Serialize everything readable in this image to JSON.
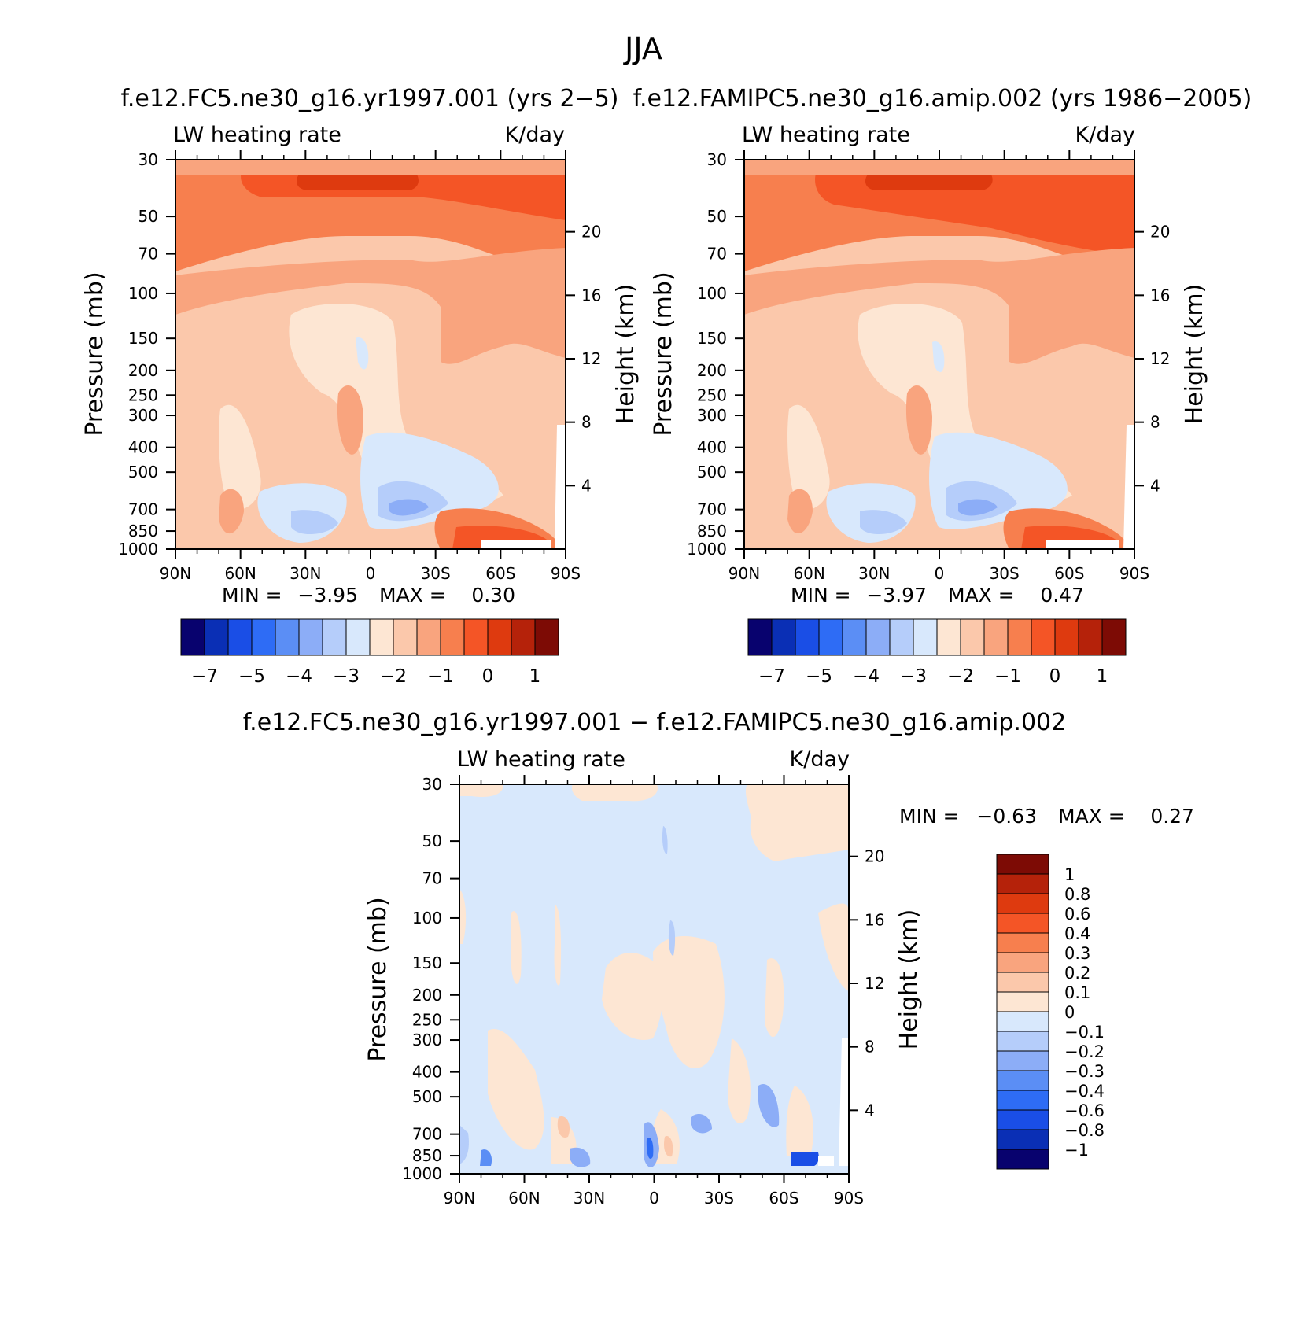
{
  "page_title": "JJA",
  "chart_data": [
    {
      "type": "heatmap",
      "title": "f.e12.FC5.ne30_g16.yr1997.001 (yrs 2−5)",
      "left_string": "LW heating rate",
      "right_string": "K/day",
      "ylabel": "Pressure (mb)",
      "ylabel_right": "Height (km)",
      "x_ticks": [
        "90N",
        "60N",
        "30N",
        "0",
        "30S",
        "60S",
        "90S"
      ],
      "y_ticks": [
        "30",
        "50",
        "70",
        "100",
        "150",
        "200",
        "250",
        "300",
        "400",
        "500",
        "700",
        "850",
        "1000"
      ],
      "y_right_ticks": [
        "20",
        "16",
        "12",
        "8",
        "4"
      ],
      "min_text": "MIN =",
      "min_value": "−3.95",
      "max_text": "MAX =",
      "max_value": "0.30",
      "min": -3.95,
      "max": 0.3,
      "colorbar": {
        "orientation": "horizontal",
        "labels": [
          "−7",
          "−5",
          "−4",
          "−3",
          "−2",
          "−1",
          "0",
          "1"
        ],
        "colors": [
          "#08026e",
          "#0a2fb5",
          "#1a4ee6",
          "#2e6cf5",
          "#5b8ef5",
          "#8cadf7",
          "#b5cdfa",
          "#d8e8fc",
          "#fde6d3",
          "#fbc8ab",
          "#f9a47e",
          "#f77f4e",
          "#f45526",
          "#de3a0f",
          "#b5220a",
          "#7d0b05"
        ]
      },
      "levels": [
        -7,
        -6,
        -5,
        -4.5,
        -4,
        -3.5,
        -3,
        -2.5,
        -2,
        -1.5,
        -1,
        -0.5,
        0,
        0.5,
        1
      ]
    },
    {
      "type": "heatmap",
      "title": "f.e12.FAMIPC5.ne30_g16.amip.002 (yrs 1986−2005)",
      "left_string": "LW heating rate",
      "right_string": "K/day",
      "ylabel": "Pressure (mb)",
      "ylabel_right": "Height (km)",
      "x_ticks": [
        "90N",
        "60N",
        "30N",
        "0",
        "30S",
        "60S",
        "90S"
      ],
      "y_ticks": [
        "30",
        "50",
        "70",
        "100",
        "150",
        "200",
        "250",
        "300",
        "400",
        "500",
        "700",
        "850",
        "1000"
      ],
      "y_right_ticks": [
        "20",
        "16",
        "12",
        "8",
        "4"
      ],
      "min_text": "MIN =",
      "min_value": "−3.97",
      "max_text": "MAX =",
      "max_value": "0.47",
      "min": -3.97,
      "max": 0.47,
      "colorbar": {
        "orientation": "horizontal",
        "labels": [
          "−7",
          "−5",
          "−4",
          "−3",
          "−2",
          "−1",
          "0",
          "1"
        ],
        "colors": [
          "#08026e",
          "#0a2fb5",
          "#1a4ee6",
          "#2e6cf5",
          "#5b8ef5",
          "#8cadf7",
          "#b5cdfa",
          "#d8e8fc",
          "#fde6d3",
          "#fbc8ab",
          "#f9a47e",
          "#f77f4e",
          "#f45526",
          "#de3a0f",
          "#b5220a",
          "#7d0b05"
        ]
      }
    },
    {
      "type": "heatmap",
      "title": "f.e12.FC5.ne30_g16.yr1997.001 − f.e12.FAMIPC5.ne30_g16.amip.002",
      "left_string": "LW heating rate",
      "right_string": "K/day",
      "ylabel": "Pressure (mb)",
      "ylabel_right": "Height (km)",
      "x_ticks": [
        "90N",
        "60N",
        "30N",
        "0",
        "30S",
        "60S",
        "90S"
      ],
      "y_ticks": [
        "30",
        "50",
        "70",
        "100",
        "150",
        "200",
        "250",
        "300",
        "400",
        "500",
        "700",
        "850",
        "1000"
      ],
      "y_right_ticks": [
        "20",
        "16",
        "12",
        "8",
        "4"
      ],
      "min_text": "MIN =",
      "min_value": "−0.63",
      "max_text": "MAX =",
      "max_value": "0.27",
      "min": -0.63,
      "max": 0.27,
      "colorbar": {
        "orientation": "vertical",
        "labels": [
          "1",
          "0.8",
          "0.6",
          "0.4",
          "0.3",
          "0.2",
          "0.1",
          "0",
          "−0.1",
          "−0.2",
          "−0.3",
          "−0.4",
          "−0.6",
          "−0.8",
          "−1"
        ],
        "colors": [
          "#7d0b05",
          "#b5220a",
          "#de3a0f",
          "#f45526",
          "#f77f4e",
          "#f9a47e",
          "#fbc8ab",
          "#fde6d3",
          "#d8e8fc",
          "#b5cdfa",
          "#8cadf7",
          "#5b8ef5",
          "#2e6cf5",
          "#1a4ee6",
          "#0a2fb5",
          "#08026e"
        ]
      }
    }
  ]
}
